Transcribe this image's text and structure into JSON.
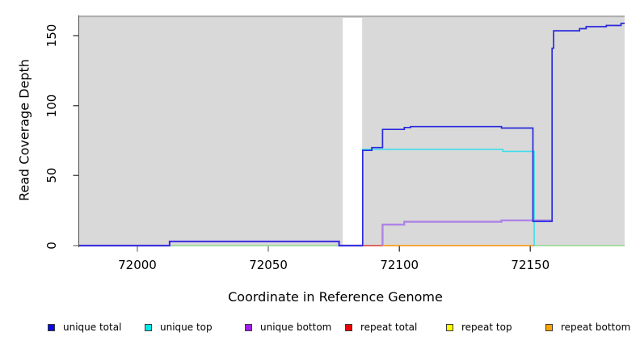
{
  "figure": {
    "background": "#FFFFFF",
    "plot_background_band_color": "#D9D9D9",
    "axis_color": "#4D4D4D"
  },
  "chart_data": {
    "type": "line",
    "title": "",
    "xlabel": "Coordinate in Reference Genome",
    "ylabel": "Read Coverage Depth",
    "xlim": [
      71977.8,
      72186
    ],
    "ylim": [
      0,
      164.5
    ],
    "xticks": [
      "72000",
      "72050",
      "72100",
      "72150"
    ],
    "xtick_values": [
      72000,
      72050,
      72100,
      72150
    ],
    "yticks": [
      "0",
      "50",
      "100",
      "150"
    ],
    "ytick_values": [
      0,
      50,
      100,
      150
    ],
    "grid": "off",
    "legend_position": "bottom",
    "background_bands": {
      "comment": "gray shaded repeat regions; white gap between them",
      "color": "#D9D9D9",
      "regions": [
        [
          71977.8,
          72078.4
        ],
        [
          72085.8,
          72186
        ]
      ]
    },
    "top_strip": {
      "comment": "thin gray bar along the top of the plot spanning full width, darkest over the white gap",
      "color": "rgba(118,118,118,0.62)"
    },
    "series": [
      {
        "name": "zero-overlap (unique top + repeat top at depth 0, renders pale green)",
        "color": "#93DB8F",
        "width": 1.5,
        "segments": [
          [
            [
              72012.3,
              0
            ],
            [
              72077,
              0
            ]
          ],
          [
            [
              72151.5,
              0
            ],
            [
              72186,
              0
            ]
          ]
        ]
      },
      {
        "name": "repeat total",
        "color": "#DE3B3B",
        "width": 1.6,
        "segments": [
          [
            [
              72086.2,
              0
            ],
            [
              72093.6,
              0
            ]
          ]
        ]
      },
      {
        "name": "repeat bottom",
        "color": "#FF9403",
        "width": 1.6,
        "segments": [
          [
            [
              72093.6,
              0
            ],
            [
              72151.5,
              0
            ]
          ]
        ]
      },
      {
        "name": "unique top",
        "color": "#3FDDEA",
        "width": 1.6,
        "segments": [
          [
            [
              72086,
              0
            ],
            [
              72086,
              68.8
            ],
            [
              72139.5,
              68.8
            ],
            [
              72139.5,
              67.3
            ],
            [
              72151.5,
              67.3
            ],
            [
              72151.5,
              0
            ]
          ]
        ]
      },
      {
        "name": "unique bottom",
        "color": "#AD85E6",
        "width": 2.4,
        "segments": [
          [
            [
              71977.8,
              0
            ],
            [
              72012.3,
              0
            ],
            [
              72012.3,
              3
            ],
            [
              72077,
              3
            ],
            [
              72077,
              0
            ],
            [
              72086,
              0
            ]
          ],
          [
            [
              72093.6,
              0
            ],
            [
              72093.6,
              15
            ],
            [
              72101.9,
              15
            ],
            [
              72101.9,
              17
            ],
            [
              72139,
              17
            ],
            [
              72139,
              18
            ],
            [
              72158.3,
              18
            ]
          ]
        ]
      },
      {
        "name": "unique total",
        "color": "#2929DC",
        "width": 1.7,
        "segments": [
          [
            [
              71977.8,
              0
            ],
            [
              72012.3,
              0
            ],
            [
              72012.3,
              3
            ],
            [
              72077,
              3
            ],
            [
              72077,
              0
            ],
            [
              72086,
              0
            ],
            [
              72086,
              68
            ],
            [
              72089.5,
              68
            ],
            [
              72089.5,
              70
            ],
            [
              72093.6,
              70
            ],
            [
              72093.6,
              83
            ],
            [
              72101.9,
              83
            ],
            [
              72101.9,
              84.4
            ],
            [
              72104.3,
              84.4
            ],
            [
              72104.3,
              85
            ],
            [
              72139,
              85
            ],
            [
              72139,
              84
            ],
            [
              72151,
              84
            ],
            [
              72151,
              17.3
            ],
            [
              72158.3,
              17.3
            ],
            [
              72158.3,
              141
            ],
            [
              72158.9,
              141
            ],
            [
              72158.9,
              153.5
            ],
            [
              72168.8,
              153.5
            ],
            [
              72168.8,
              155
            ],
            [
              72171.3,
              155
            ],
            [
              72171.3,
              156.4
            ],
            [
              72179,
              156.4
            ],
            [
              72179,
              157.3
            ],
            [
              72184.6,
              157.3
            ],
            [
              72184.6,
              158.7
            ],
            [
              72186,
              158.7
            ]
          ]
        ]
      }
    ]
  },
  "legend": {
    "items": [
      {
        "label": "unique total",
        "color": "#0A0ADF"
      },
      {
        "label": "unique top",
        "color": "#00E8E8"
      },
      {
        "label": "unique bottom",
        "color": "#A21FE8"
      },
      {
        "label": "repeat total",
        "color": "#EE0000"
      },
      {
        "label": "repeat top",
        "color": "#FFFF00"
      },
      {
        "label": "repeat bottom",
        "color": "#FFA500"
      }
    ]
  }
}
